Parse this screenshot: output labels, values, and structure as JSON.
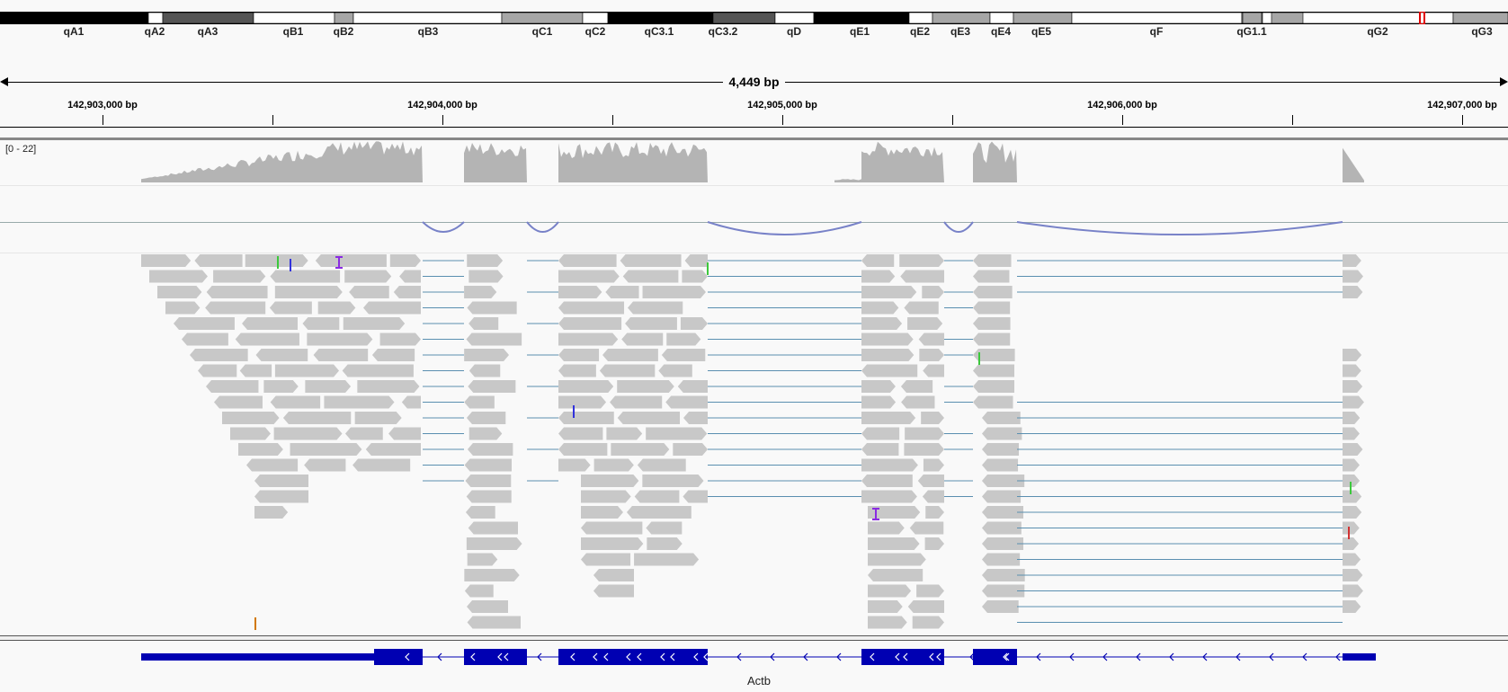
{
  "ideogram": {
    "bands": [
      {
        "name": "qA1",
        "stain": "black"
      },
      {
        "name": "qA2",
        "stain": "white"
      },
      {
        "name": "qA3",
        "stain": "darkgray"
      },
      {
        "name": "qB1",
        "stain": "white"
      },
      {
        "name": "qB2",
        "stain": "gray"
      },
      {
        "name": "qB3",
        "stain": "white"
      },
      {
        "name": "qC1",
        "stain": "gray"
      },
      {
        "name": "qC2",
        "stain": "white"
      },
      {
        "name": "qC3.1",
        "stain": "black"
      },
      {
        "name": "qC3.2",
        "stain": "darkgray"
      },
      {
        "name": "qD",
        "stain": "white"
      },
      {
        "name": "qE1",
        "stain": "black"
      },
      {
        "name": "qE2",
        "stain": "white"
      },
      {
        "name": "qE3",
        "stain": "gray"
      },
      {
        "name": "qE4",
        "stain": "white"
      },
      {
        "name": "qE5",
        "stain": "gray"
      },
      {
        "name": "qF",
        "stain": "white"
      },
      {
        "name": "qG1.1",
        "stain": "gray"
      },
      {
        "name": "qG2",
        "stain": "white"
      },
      {
        "name": "qG3",
        "stain": "gray"
      }
    ],
    "current_region_marker_color": "#e00000"
  },
  "ruler": {
    "span_label": "4,449 bp",
    "ticks": [
      {
        "label": "142,903,000 bp"
      },
      {
        "label": "142,904,000 bp"
      },
      {
        "label": "142,905,000 bp"
      },
      {
        "label": "142,906,000 bp"
      },
      {
        "label": "142,907,000 bp"
      }
    ]
  },
  "coverage_track": {
    "range_label": "[0 - 22]",
    "color": "#b4b4b4"
  },
  "junction_track": {
    "color": "#7882c8"
  },
  "alignment_track": {
    "read_color": "#c8c8c8",
    "split_line_color": "#5a8fb0",
    "mismatch_colors": [
      "#3cc83c",
      "#d27800",
      "#3232dc",
      "#d23232"
    ],
    "insertion_color": "#8a2be2"
  },
  "gene_track": {
    "gene_name": "Actb",
    "strand": "-",
    "color": "#0000b2"
  }
}
